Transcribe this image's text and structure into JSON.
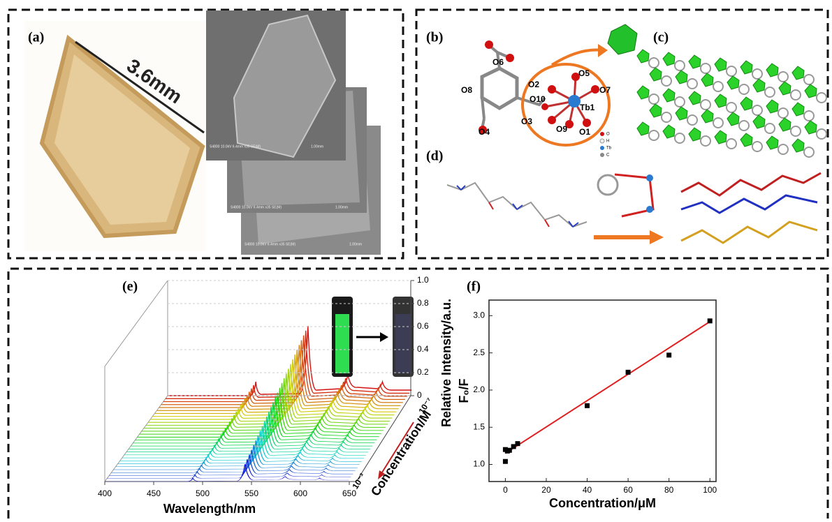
{
  "panels": {
    "a": {
      "label": "(a)",
      "dimension": "3.6mm",
      "sem_caption": "S4800 10.0kV 6.4mm x35 SE(M)",
      "sem_scale": "1.00mm"
    },
    "b": {
      "label": "(b)",
      "atoms": [
        "O6",
        "O8",
        "O4",
        "O2",
        "O10",
        "O3",
        "O9",
        "O1",
        "O5",
        "O7",
        "Tb1"
      ],
      "legend": [
        "O",
        "H",
        "Tb",
        "C"
      ]
    },
    "c": {
      "label": "(c)"
    },
    "d": {
      "label": "(d)"
    },
    "e": {
      "label": "(e)",
      "x_label": "Wavelength/nm",
      "xlim": [
        400,
        650
      ],
      "xticks": [
        400,
        450,
        500,
        550,
        600,
        650
      ],
      "z_label": "Relative Intensity/a.u.",
      "zlim": [
        0,
        1
      ],
      "zticks": [
        0,
        0.2,
        0.4,
        0.6,
        0.8,
        {
          "value": 1,
          "label": "1.0"
        }
      ],
      "depth_label": "Concentration/M",
      "depth_ticks": [
        "10⁻⁷",
        "10⁻³"
      ]
    }
  },
  "chart_data": {
    "type": "scatter",
    "label": "(f)",
    "x_label": "Concentration/μM",
    "y_label": "F₀/F",
    "x": [
      0,
      0,
      1,
      2,
      4,
      6,
      40,
      60,
      80,
      100
    ],
    "values": [
      1.04,
      1.2,
      1.18,
      1.19,
      1.24,
      1.28,
      1.79,
      2.24,
      2.47,
      2.93
    ],
    "color": "#000000",
    "fit": {
      "x": [
        0,
        100
      ],
      "values": [
        1.15,
        2.92
      ],
      "color": "#e02020"
    },
    "xlim": [
      -8,
      103
    ],
    "xticks": [
      0,
      20,
      40,
      60,
      80,
      100
    ],
    "ylim": [
      0.77,
      3.21
    ],
    "yticks": [
      {
        "value": 1,
        "label": "1.0"
      },
      {
        "value": 1.5,
        "label": "1.5"
      },
      {
        "value": 2,
        "label": "2.0"
      },
      {
        "value": 2.5,
        "label": "2.5"
      },
      {
        "value": 3,
        "label": "3.0"
      }
    ]
  }
}
